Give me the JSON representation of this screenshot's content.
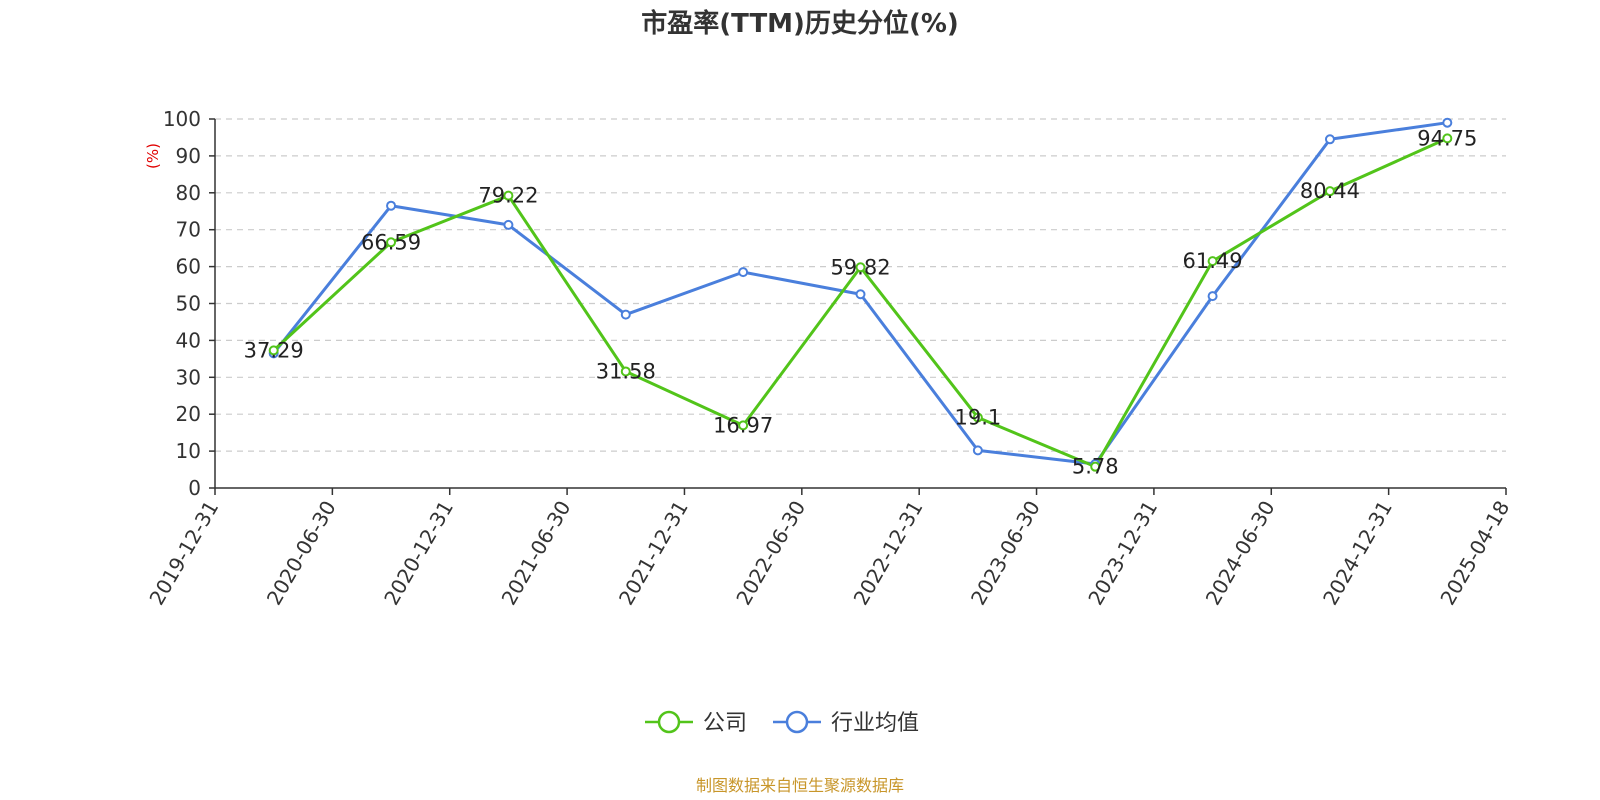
{
  "chart_data": {
    "type": "line",
    "title": "市盈率(TTM)历史分位(%)",
    "ylabel": "(%)",
    "ylim": [
      0,
      100
    ],
    "yticks": [
      0,
      10,
      20,
      30,
      40,
      50,
      60,
      70,
      80,
      90,
      100
    ],
    "categories": [
      "2019-12-31",
      "2020-06-30",
      "2020-12-31",
      "2021-06-30",
      "2021-12-31",
      "2022-06-30",
      "2022-12-31",
      "2023-06-30",
      "2023-12-31",
      "2024-06-30",
      "2024-12-31",
      "2025-04-18"
    ],
    "grid": true,
    "legend_position": "bottom",
    "series": [
      {
        "name": "公司",
        "color": "#52c41a",
        "show_labels": true,
        "values": [
          37.29,
          66.59,
          79.22,
          31.58,
          16.97,
          59.82,
          19.1,
          5.78,
          61.49,
          80.44,
          94.75,
          null
        ]
      },
      {
        "name": "行业均值",
        "color": "#4a7fdc",
        "show_labels": false,
        "values": [
          36.5,
          76.5,
          71.3,
          47,
          58.5,
          52.5,
          10.2,
          6.5,
          52,
          94.5,
          99,
          null
        ]
      }
    ],
    "source": "制图数据来自恒生聚源数据库",
    "colors": {
      "axis": "#333333",
      "grid": "#cccccc",
      "ylabel": "#e00000",
      "source": "#c8962a"
    }
  }
}
